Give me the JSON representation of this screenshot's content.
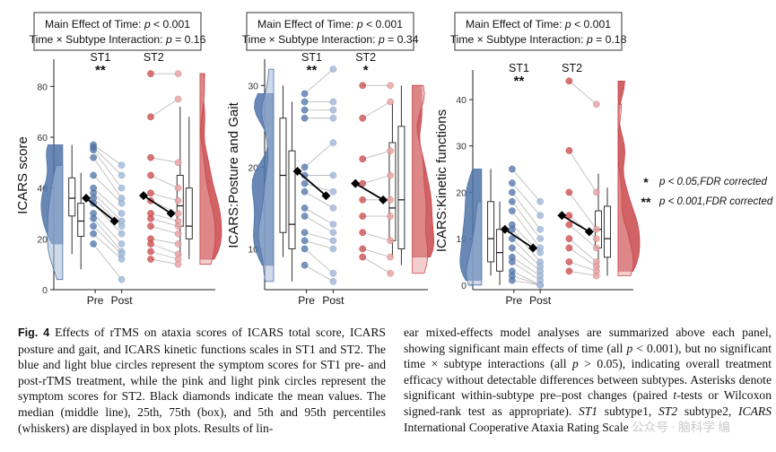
{
  "figure": {
    "x_tick_labels": [
      "Pre",
      "Post"
    ],
    "subtypes": [
      "ST1",
      "ST2"
    ],
    "colors": {
      "st1_pre": "#4f73a8",
      "st1_post": "#a6bcd9",
      "st2_pre": "#c9474a",
      "st2_post": "#e8a6a6",
      "mean": "#000000",
      "line": "#bdbdbd"
    },
    "legend": [
      {
        "symbol": "*",
        "text": "p < 0.05,FDR corrected"
      },
      {
        "symbol": "**",
        "text": "p < 0.001,FDR corrected"
      }
    ]
  },
  "chart_data": [
    {
      "type": "scatter",
      "ylabel": "ICARS score",
      "ylim": [
        0,
        90
      ],
      "yticks": [
        0,
        20,
        40,
        60,
        80
      ],
      "stats_line1": "Main Effect of Time: p < 0.001",
      "stats_line2": "Time × Subtype Interaction: p = 0.16",
      "sig": {
        "ST1": "**",
        "ST2": ""
      },
      "series": [
        {
          "name": "ST1",
          "pre": [
            57,
            56,
            55,
            52,
            45,
            40,
            38,
            36,
            34,
            30,
            28,
            25,
            22,
            18
          ],
          "post": [
            49,
            45,
            40,
            36,
            34,
            30,
            27,
            25,
            22,
            18,
            15,
            14,
            12,
            4
          ],
          "mean_pre": 36,
          "mean_post": 27,
          "box_pre": {
            "p5": 14,
            "q1": 29,
            "median": 36,
            "q3": 44,
            "p95": 57
          },
          "box_post": {
            "p5": 8,
            "q1": 21,
            "median": 27,
            "q3": 34,
            "p95": 46
          }
        },
        {
          "name": "ST2",
          "pre": [
            85,
            68,
            52,
            45,
            38,
            35,
            30,
            28,
            25,
            20,
            18,
            15,
            12
          ],
          "post": [
            85,
            75,
            50,
            40,
            35,
            30,
            27,
            25,
            22,
            18,
            14,
            12,
            10
          ],
          "mean_pre": 37,
          "mean_post": 30,
          "box_pre": {
            "p5": 13,
            "q1": 25,
            "median": 33,
            "q3": 45,
            "p95": 72
          },
          "box_post": {
            "p5": 12,
            "q1": 20,
            "median": 25,
            "q3": 40,
            "p95": 68
          }
        }
      ]
    },
    {
      "type": "scatter",
      "ylabel": "ICARS:Posture and Gait",
      "ylim": [
        5,
        33
      ],
      "yticks": [
        10,
        20,
        30
      ],
      "stats_line1": "Main Effect of Time: p < 0.001",
      "stats_line2": "Time × Subtype Interaction: p = 0.34",
      "sig": {
        "ST1": "**",
        "ST2": "*"
      },
      "series": [
        {
          "name": "ST1",
          "pre": [
            29,
            28,
            27,
            26,
            20,
            19,
            18,
            17,
            15,
            14,
            12,
            11,
            10,
            8
          ],
          "post": [
            32,
            28,
            27,
            26,
            23,
            19,
            17,
            15,
            13,
            12,
            11,
            10,
            7,
            6
          ],
          "mean_pre": 19.5,
          "mean_post": 16.5,
          "box_pre": {
            "p5": 9,
            "q1": 12,
            "median": 19,
            "q3": 26,
            "p95": 30
          },
          "box_post": {
            "p5": 6,
            "q1": 10,
            "median": 13,
            "q3": 22,
            "p95": 28
          }
        },
        {
          "name": "ST2",
          "pre": [
            30,
            26,
            21,
            18,
            16,
            14,
            12,
            10,
            9
          ],
          "post": [
            30,
            28,
            22,
            19,
            16,
            14,
            11,
            9,
            7
          ],
          "mean_pre": 18,
          "mean_post": 16,
          "box_pre": {
            "p5": 9,
            "q1": 11,
            "median": 15,
            "q3": 23,
            "p95": 28
          },
          "box_post": {
            "p5": 8,
            "q1": 10,
            "median": 16,
            "q3": 25,
            "p95": 30
          }
        }
      ]
    },
    {
      "type": "scatter",
      "ylabel": "ICARS:Kinetic functions",
      "ylim": [
        -1,
        46
      ],
      "yticks": [
        0,
        10,
        20,
        30,
        40
      ],
      "stats_line1": "Main Effect of Time: p < 0.001",
      "stats_line2": "Time × Subtype Interaction: p = 0.18",
      "sig": {
        "ST1": "**",
        "ST2": ""
      },
      "series": [
        {
          "name": "ST1",
          "pre": [
            25,
            22,
            20,
            18,
            16,
            13,
            12,
            10,
            8,
            6,
            5,
            3,
            2,
            1
          ],
          "post": [
            18,
            15,
            12,
            10,
            8,
            7,
            5,
            4,
            3,
            2,
            1,
            0,
            0,
            0
          ],
          "mean_pre": 12,
          "mean_post": 8,
          "box_pre": {
            "p5": 2,
            "q1": 5,
            "median": 10,
            "q3": 18,
            "p95": 25
          },
          "box_post": {
            "p5": 0,
            "q1": 3,
            "median": 7,
            "q3": 12,
            "p95": 18
          }
        },
        {
          "name": "ST2",
          "pre": [
            44,
            29,
            20,
            15,
            13,
            10,
            8,
            5,
            3
          ],
          "post": [
            39,
            20,
            12,
            10,
            8,
            5,
            4,
            3,
            2
          ],
          "mean_pre": 15,
          "mean_post": 11.5,
          "box_pre": {
            "p5": 3,
            "q1": 8,
            "median": 12,
            "q3": 16,
            "p95": 24
          },
          "box_post": {
            "p5": 2,
            "q1": 6,
            "median": 10,
            "q3": 17,
            "p95": 21
          }
        }
      ]
    }
  ],
  "caption": {
    "fig_label": "Fig. 4",
    "left_text": "Effects of rTMS on ataxia scores of ICARS total score, ICARS posture and gait, and ICARS kinetic functions scales in ST1 and ST2. The blue and light blue circles represent the symptom scores for ST1 pre- and post-rTMS treatment, while the pink and light pink circles represent the symptom scores for ST2. Black diamonds indicate the mean values. The median (middle line), 25th, 75th (box), and 5th and 95th percentiles (whiskers) are displayed in box plots. Results of lin-",
    "right_1": "ear mixed-effects model analyses are summarized above each panel, showing significant main effects of time (all ",
    "right_p1": "p",
    "right_2": " < 0.001), but no significant time × subtype interactions (all ",
    "right_p2": "p",
    "right_3": " > 0.05), indicating overall treatment efficacy without detectable differences between subtypes. Asterisks denote significant within-subtype pre–post changes (paired ",
    "right_t": "t",
    "right_4": "-tests or Wilcoxon signed-rank test as appropriate). ",
    "right_st1": "ST1",
    "right_5": " subtype1, ",
    "right_st2": "ST2",
    "right_6": " subtype2, ",
    "right_icars": "ICARS",
    "right_7": " International Cooperative Ataxia Rating Scale",
    "watermark": "公众号 · 脑科学 编"
  }
}
